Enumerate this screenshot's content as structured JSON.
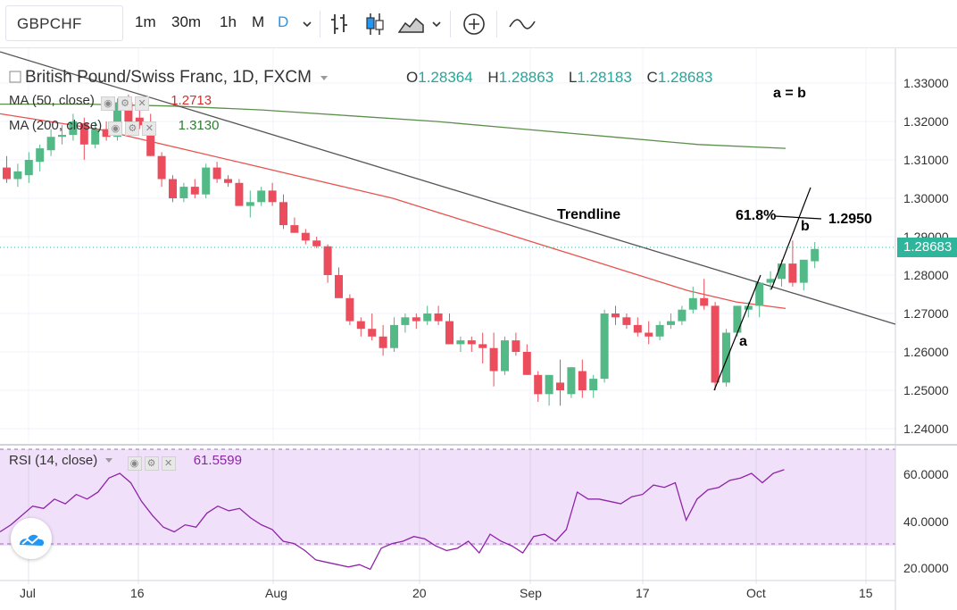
{
  "toolbar": {
    "symbol": "GBPCHF",
    "intervals": [
      "1m",
      "30m",
      "1h",
      "M",
      "D"
    ],
    "active_interval": "D",
    "icons": [
      "chevron-down-icon",
      "bar-chart-icon",
      "candles-icon",
      "area-chart-icon",
      "chevron-down-icon",
      "add-indicator-icon",
      "line-tool-icon"
    ]
  },
  "legend": {
    "title": "British Pound/Swiss Franc, 1D, FXCM",
    "open_label": "O",
    "open": "1.28364",
    "high_label": "H",
    "high": "1.28863",
    "low_label": "L",
    "low": "1.28183",
    "close_label": "C",
    "close": "1.28683"
  },
  "indicators": {
    "ma50_label": "MA (50, close)",
    "ma50_value": "1.2713",
    "ma200_label": "MA (200, close)",
    "ma200_value": "1.3130",
    "rsi_label": "RSI (14, close)",
    "rsi_value": "61.5599"
  },
  "annotations": {
    "a_equals_b": "a = b",
    "trendline": "Trendline",
    "fib": "61.8%",
    "target": "1.2950",
    "a": "a",
    "b": "b"
  },
  "colors": {
    "up": "#53b987",
    "down": "#eb4d5c",
    "ma50": "#e8534f",
    "ma200": "#5c8f4a",
    "trendline": "#555555",
    "rsi": "#8e24aa",
    "rsi_band": "#f1e0f9",
    "last_price": "#2fb59b"
  },
  "chart_data": {
    "type": "candlestick",
    "y_axis_labels": [
      "1.33000",
      "1.32000",
      "1.31000",
      "1.30000",
      "1.29000",
      "1.28683",
      "1.28000",
      "1.27000",
      "1.26000",
      "1.25000",
      "1.24000"
    ],
    "last_price": "1.28683",
    "x_axis_labels": [
      "Jul",
      "16",
      "Aug",
      "20",
      "Sep",
      "17",
      "Oct",
      "15"
    ],
    "candles": [
      [
        1.308,
        1.311,
        1.304,
        1.305
      ],
      [
        1.305,
        1.309,
        1.303,
        1.307
      ],
      [
        1.306,
        1.312,
        1.304,
        1.31
      ],
      [
        1.3095,
        1.314,
        1.307,
        1.313
      ],
      [
        1.3125,
        1.318,
        1.311,
        1.316
      ],
      [
        1.316,
        1.319,
        1.314,
        1.3165
      ],
      [
        1.3165,
        1.322,
        1.315,
        1.32
      ],
      [
        1.3195,
        1.321,
        1.31,
        1.314
      ],
      [
        1.314,
        1.32,
        1.313,
        1.318
      ],
      [
        1.318,
        1.32,
        1.315,
        1.316
      ],
      [
        1.316,
        1.326,
        1.315,
        1.325
      ],
      [
        1.325,
        1.327,
        1.319,
        1.32
      ],
      [
        1.321,
        1.326,
        1.318,
        1.319
      ],
      [
        1.319,
        1.322,
        1.311,
        1.311
      ],
      [
        1.311,
        1.312,
        1.303,
        1.305
      ],
      [
        1.305,
        1.306,
        1.299,
        1.3
      ],
      [
        1.3,
        1.304,
        1.299,
        1.303
      ],
      [
        1.303,
        1.305,
        1.3,
        1.301
      ],
      [
        1.301,
        1.309,
        1.3,
        1.308
      ],
      [
        1.308,
        1.3095,
        1.304,
        1.305
      ],
      [
        1.305,
        1.306,
        1.303,
        1.304
      ],
      [
        1.304,
        1.305,
        1.298,
        1.298
      ],
      [
        1.298,
        1.302,
        1.295,
        1.299
      ],
      [
        1.299,
        1.303,
        1.298,
        1.302
      ],
      [
        1.302,
        1.304,
        1.298,
        1.299
      ],
      [
        1.299,
        1.301,
        1.292,
        1.293
      ],
      [
        1.293,
        1.295,
        1.291,
        1.291
      ],
      [
        1.291,
        1.292,
        1.288,
        1.289
      ],
      [
        1.289,
        1.29,
        1.287,
        1.2875
      ],
      [
        1.2875,
        1.288,
        1.278,
        1.28
      ],
      [
        1.28,
        1.282,
        1.274,
        1.274
      ],
      [
        1.274,
        1.275,
        1.267,
        1.268
      ],
      [
        1.268,
        1.269,
        1.264,
        1.266
      ],
      [
        1.266,
        1.27,
        1.263,
        1.264
      ],
      [
        1.264,
        1.267,
        1.259,
        1.261
      ],
      [
        1.261,
        1.269,
        1.26,
        1.267
      ],
      [
        1.267,
        1.27,
        1.265,
        1.269
      ],
      [
        1.269,
        1.27,
        1.266,
        1.268
      ],
      [
        1.268,
        1.272,
        1.267,
        1.27
      ],
      [
        1.27,
        1.272,
        1.267,
        1.268
      ],
      [
        1.268,
        1.27,
        1.262,
        1.262
      ],
      [
        1.262,
        1.264,
        1.26,
        1.263
      ],
      [
        1.263,
        1.264,
        1.26,
        1.262
      ],
      [
        1.262,
        1.265,
        1.257,
        1.261
      ],
      [
        1.261,
        1.265,
        1.251,
        1.255
      ],
      [
        1.255,
        1.264,
        1.254,
        1.263
      ],
      [
        1.263,
        1.265,
        1.259,
        1.26
      ],
      [
        1.26,
        1.262,
        1.254,
        1.254
      ],
      [
        1.254,
        1.255,
        1.247,
        1.249
      ],
      [
        1.249,
        1.254,
        1.246,
        1.254
      ],
      [
        1.252,
        1.258,
        1.246,
        1.25
      ],
      [
        1.249,
        1.256,
        1.248,
        1.256
      ],
      [
        1.255,
        1.258,
        1.248,
        1.25
      ],
      [
        1.25,
        1.254,
        1.248,
        1.253
      ],
      [
        1.253,
        1.271,
        1.252,
        1.27
      ],
      [
        1.27,
        1.272,
        1.267,
        1.269
      ],
      [
        1.269,
        1.27,
        1.266,
        1.267
      ],
      [
        1.267,
        1.269,
        1.264,
        1.265
      ],
      [
        1.265,
        1.268,
        1.262,
        1.264
      ],
      [
        1.264,
        1.268,
        1.263,
        1.267
      ],
      [
        1.267,
        1.27,
        1.266,
        1.268
      ],
      [
        1.268,
        1.272,
        1.267,
        1.271
      ],
      [
        1.271,
        1.277,
        1.27,
        1.274
      ],
      [
        1.274,
        1.279,
        1.271,
        1.272
      ],
      [
        1.272,
        1.273,
        1.25,
        1.252
      ],
      [
        1.252,
        1.266,
        1.251,
        1.265
      ],
      [
        1.265,
        1.272,
        1.264,
        1.272
      ],
      [
        1.271,
        1.273,
        1.269,
        1.272
      ],
      [
        1.272,
        1.278,
        1.269,
        1.278
      ],
      [
        1.278,
        1.281,
        1.276,
        1.279
      ],
      [
        1.279,
        1.284,
        1.277,
        1.283
      ],
      [
        1.283,
        1.289,
        1.277,
        1.278
      ],
      [
        1.278,
        1.284,
        1.276,
        1.284
      ],
      [
        1.2836,
        1.2886,
        1.2818,
        1.2868
      ]
    ],
    "ma50": [
      1.322,
      1.32,
      1.318,
      1.315,
      1.312,
      1.309,
      1.306,
      1.303,
      1.3,
      1.296,
      1.292,
      1.288,
      1.284,
      1.28,
      1.276,
      1.273,
      1.2713
    ],
    "ma200": [
      1.3245,
      1.3245,
      1.324,
      1.323,
      1.3215,
      1.32,
      1.318,
      1.316,
      1.314,
      1.313
    ],
    "rsi_axis_labels": [
      "60.0000",
      "40.0000",
      "20.0000"
    ],
    "rsi_values": [
      35,
      38,
      42,
      46,
      45,
      49,
      47,
      51,
      49,
      52,
      58,
      60,
      56,
      48,
      42,
      37,
      35,
      38,
      37,
      43,
      46,
      44,
      45,
      41,
      38,
      36,
      31,
      30,
      27,
      23,
      22,
      21,
      20,
      21,
      19,
      28,
      30,
      31,
      33,
      32,
      29,
      27,
      28,
      31,
      26,
      34,
      31,
      29,
      26,
      33,
      34,
      31,
      36,
      52,
      49,
      49,
      48,
      47,
      50,
      51,
      55,
      54,
      56,
      40,
      49,
      53,
      54,
      57,
      58,
      60,
      56,
      60,
      61.56
    ],
    "trendline": "a = b"
  }
}
